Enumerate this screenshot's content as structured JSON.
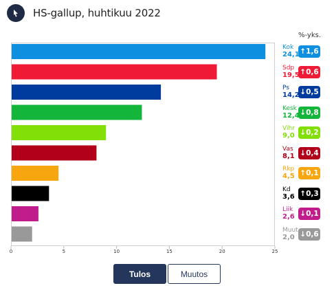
{
  "header": {
    "title": "HS-gallup, huhtikuu 2022",
    "logo_icon": "hs-logo-icon"
  },
  "change_header": "%-yks.",
  "chart_data": {
    "type": "bar",
    "orientation": "horizontal",
    "title": "HS-gallup, huhtikuu 2022",
    "xlim": [
      0,
      25
    ],
    "xticks": [
      0,
      5,
      10,
      15,
      20,
      25
    ],
    "grid": false,
    "categories": [
      "Kok",
      "Sdp",
      "Ps",
      "Kesk",
      "Vihr",
      "Vas",
      "Rkp",
      "Kd",
      "Liik",
      "Muut"
    ],
    "values": [
      24.1,
      19.5,
      14.2,
      12.4,
      9.0,
      8.1,
      4.5,
      3.6,
      2.6,
      2.0
    ],
    "value_labels": [
      "24,1",
      "19,5",
      "14,2",
      "12,4",
      "9,0",
      "8,1",
      "4,5",
      "3,6",
      "2,6",
      "2,0"
    ],
    "colors": [
      "#0f8fe0",
      "#ef1b36",
      "#003c9e",
      "#13b53a",
      "#82df07",
      "#b3001a",
      "#f7a60f",
      "#000000",
      "#c01c8c",
      "#999999"
    ],
    "changes": [
      {
        "direction": "up",
        "label": "1,6"
      },
      {
        "direction": "up",
        "label": "0,6"
      },
      {
        "direction": "down",
        "label": "0,5"
      },
      {
        "direction": "down",
        "label": "0,8"
      },
      {
        "direction": "down",
        "label": "0,2"
      },
      {
        "direction": "down",
        "label": "0,4"
      },
      {
        "direction": "up",
        "label": "0,1"
      },
      {
        "direction": "up",
        "label": "0,3"
      },
      {
        "direction": "down",
        "label": "0,1"
      },
      {
        "direction": "down",
        "label": "0,6"
      }
    ]
  },
  "buttons": {
    "primary": "Tulos",
    "secondary": "Muutos"
  }
}
